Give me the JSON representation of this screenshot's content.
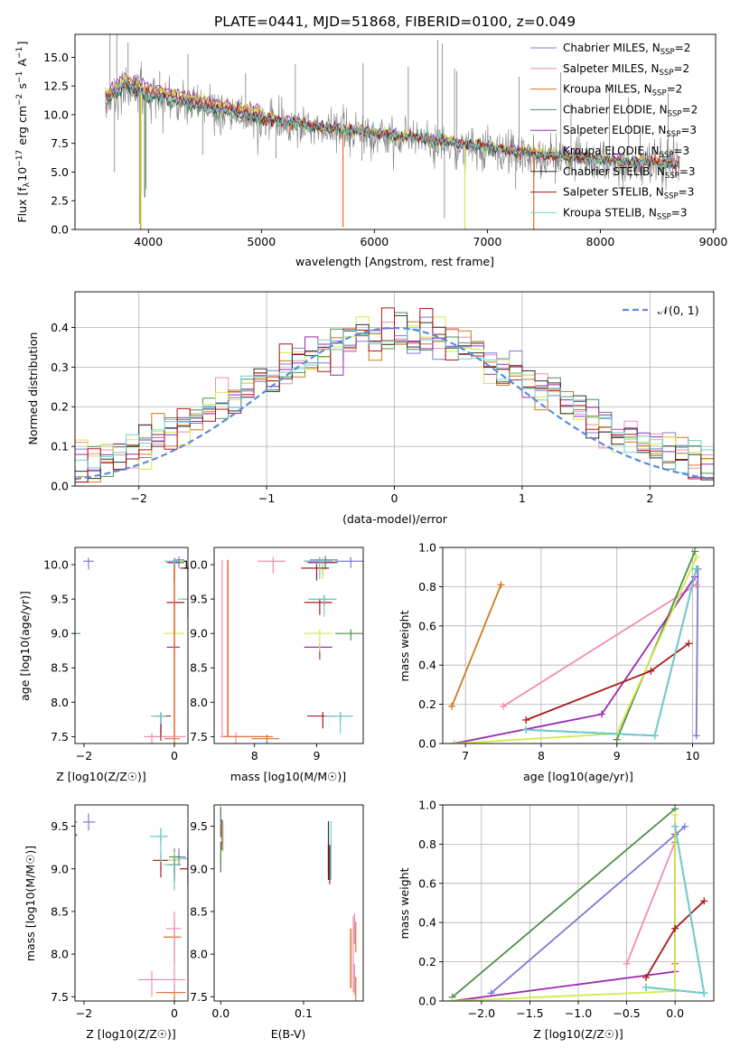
{
  "figure": {
    "title": "PLATE=0441, MJD=51868, FIBERID=0100, z=0.049"
  },
  "colors": {
    "Chabrier MILES": "#7b7bd6",
    "Salpeter MILES": "#f08cb4",
    "Kroupa MILES": "#d2781e",
    "Chabrier ELODIE": "#4f8f4f",
    "Salpeter ELODIE": "#9b2ab5",
    "Kroupa ELODIE": "#d4ea4a",
    "Chabrier STELIB": "#303030",
    "Salpeter STELIB": "#aa1a1a",
    "Kroupa STELIB": "#6dd3d3",
    "data": "#808080",
    "normal": "#5b8bd8",
    "orange_model": "#e8703a"
  },
  "chart_data": [
    {
      "id": "spectrum",
      "type": "line",
      "xlabel": "wavelength [Angstrom, rest frame]",
      "ylabel": "Flux [f_λ 10^-17 erg cm^-2 s^-1 A^-1]",
      "xlim": [
        3350,
        9020
      ],
      "ylim": [
        0,
        17
      ],
      "xticks": [
        4000,
        5000,
        6000,
        7000,
        8000,
        9000
      ],
      "yticks": [
        0.0,
        2.5,
        5.0,
        7.5,
        10.0,
        12.5,
        15.0
      ],
      "legend_position": "top-right",
      "legend": [
        {
          "model": "Chabrier MILES",
          "imf": "Chabrier MILES, N",
          "n": "=2"
        },
        {
          "model": "Salpeter MILES",
          "imf": "Salpeter MILES, N",
          "n": "=2"
        },
        {
          "model": "Kroupa MILES",
          "imf": "Kroupa MILES, N",
          "n": "=2"
        },
        {
          "model": "Chabrier ELODIE",
          "imf": "Chabrier ELODIE, N",
          "n": "=2"
        },
        {
          "model": "Salpeter ELODIE",
          "imf": "Salpeter ELODIE, N",
          "n": "=3"
        },
        {
          "model": "Kroupa ELODIE",
          "imf": "Kroupa ELODIE, N",
          "n": "=3"
        },
        {
          "model": "Chabrier STELIB",
          "imf": "Chabrier STELIB, N",
          "n": "=3"
        },
        {
          "model": "Salpeter STELIB",
          "imf": "Salpeter STELIB, N",
          "n": "=3"
        },
        {
          "model": "Kroupa STELIB",
          "imf": "Kroupa STELIB, N",
          "n": "=3"
        }
      ],
      "continuum": [
        [
          3620,
          11.0
        ],
        [
          3800,
          12.5
        ],
        [
          4000,
          11.6
        ],
        [
          4300,
          11.0
        ],
        [
          4600,
          10.3
        ],
        [
          5000,
          9.5
        ],
        [
          5500,
          8.7
        ],
        [
          6000,
          8.2
        ],
        [
          6500,
          7.6
        ],
        [
          7000,
          7.0
        ],
        [
          7500,
          6.3
        ],
        [
          8000,
          5.9
        ],
        [
          8500,
          5.6
        ],
        [
          8700,
          5.5
        ]
      ],
      "spikes": [
        [
          3660,
          17
        ],
        [
          3720,
          17
        ],
        [
          3820,
          16.3
        ],
        [
          3900,
          13
        ],
        [
          4100,
          13.8
        ],
        [
          4350,
          15.3
        ],
        [
          4860,
          13.6
        ],
        [
          5300,
          14.4
        ],
        [
          5900,
          14.5
        ],
        [
          6300,
          14.2
        ],
        [
          6560,
          16.5
        ],
        [
          6600,
          16.2
        ],
        [
          6710,
          14.0
        ],
        [
          6730,
          13.8
        ],
        [
          7280,
          13.3
        ],
        [
          7650,
          13.7
        ],
        [
          7740,
          11.0
        ],
        [
          8080,
          12.8
        ],
        [
          8250,
          11.5
        ],
        [
          8600,
          11.9
        ]
      ],
      "dips": [
        [
          3700,
          5.0
        ],
        [
          3920,
          0.5
        ],
        [
          3980,
          3.5
        ],
        [
          4480,
          6.5
        ],
        [
          5130,
          6.2
        ],
        [
          5890,
          6.0
        ],
        [
          6620,
          1.0
        ],
        [
          7250,
          3.5
        ],
        [
          7600,
          4.0
        ],
        [
          8200,
          3.0
        ]
      ]
    },
    {
      "id": "residuals",
      "type": "histogram",
      "xlabel": "(data-model)/error",
      "ylabel": "Normed distribution",
      "xlim": [
        -2.5,
        2.5
      ],
      "ylim": [
        0,
        0.49
      ],
      "xticks": [
        -2,
        -1,
        0,
        1,
        2
      ],
      "yticks": [
        0.0,
        0.1,
        0.2,
        0.3,
        0.4
      ],
      "legend_label": "N(0,1)",
      "legend_position": "top-right",
      "grid": true
    },
    {
      "id": "age_vs_Z",
      "type": "errorbar",
      "xlabel": "Z [log10(Z/Z☉)]",
      "ylabel": "age [log10(age/yr)]",
      "xlim": [
        -2.2,
        0.3
      ],
      "ylim": [
        7.4,
        10.25
      ],
      "xticks": [
        -2,
        0
      ],
      "yticks": [
        7.5,
        8.0,
        8.5,
        9.0,
        9.5,
        10.0
      ]
    },
    {
      "id": "age_vs_mass",
      "type": "errorbar",
      "xlabel": "mass [log10(M/M☉)]",
      "xlim": [
        7.35,
        9.75
      ],
      "ylim": [
        7.4,
        10.25
      ],
      "xticks": [
        8,
        9
      ],
      "yticks": [
        7.5,
        8.0,
        8.5,
        9.0,
        9.5,
        10.0
      ]
    },
    {
      "id": "weight_vs_age",
      "type": "line",
      "xlabel": "age [log10(age/yr)]",
      "ylabel": "mass weight",
      "xlim": [
        6.7,
        10.28
      ],
      "ylim": [
        0,
        1
      ],
      "xticks": [
        7,
        8,
        9,
        10
      ],
      "yticks": [
        0.0,
        0.2,
        0.4,
        0.6,
        0.8,
        1.0
      ],
      "grid": true
    },
    {
      "id": "mass_vs_Z",
      "type": "errorbar",
      "xlabel": "Z [log10(Z/Z☉)]",
      "ylabel": "mass [log10(M/M☉)]",
      "xlim": [
        -2.2,
        0.3
      ],
      "ylim": [
        7.45,
        9.75
      ],
      "xticks": [
        -2,
        0
      ],
      "yticks": [
        7.5,
        8.0,
        8.5,
        9.0,
        9.5
      ]
    },
    {
      "id": "mass_vs_ebv",
      "type": "errorbar",
      "xlabel": "E(B-V)",
      "xlim": [
        -0.008,
        0.172
      ],
      "ylim": [
        7.45,
        9.75
      ],
      "xticks": [
        0.0,
        0.1
      ],
      "yticks": [
        7.5,
        8.0,
        8.5,
        9.0,
        9.5
      ]
    },
    {
      "id": "weight_vs_Z",
      "type": "line",
      "xlabel": "Z [log10(Z/Z☉)]",
      "ylabel": "mass weight",
      "xlim": [
        -2.4,
        0.4
      ],
      "ylim": [
        0,
        1
      ],
      "xticks": [
        -2.0,
        -1.5,
        -1.0,
        -0.5,
        0.0
      ],
      "yticks": [
        0.0,
        0.2,
        0.4,
        0.6,
        0.8,
        1.0
      ],
      "grid": true
    }
  ],
  "models": [
    {
      "name": "Chabrier MILES",
      "age": [
        10.05,
        10.07
      ],
      "Z": [
        -1.9,
        0.1
      ],
      "mass": [
        9.55,
        9.14
      ],
      "ebv": [
        0.0,
        0.0
      ],
      "w": [
        0.04,
        0.89
      ]
    },
    {
      "name": "Salpeter MILES",
      "age": [
        7.5,
        10.05
      ],
      "Z": [
        -0.5,
        0.0
      ],
      "mass": [
        7.7,
        8.3
      ],
      "ebv": [
        0.16,
        0.16
      ],
      "w": [
        0.19,
        0.81
      ]
    },
    {
      "name": "Kroupa MILES",
      "age": [
        6.82,
        7.47
      ],
      "Z": [
        0.0,
        0.0
      ],
      "mass": [
        7.55,
        8.2
      ],
      "ebv": [
        0.16,
        0.16
      ],
      "w": [
        0.19,
        0.81
      ]
    },
    {
      "name": "Chabrier ELODIE",
      "age": [
        9.0,
        10.03
      ],
      "Z": [
        -2.3,
        0.0
      ],
      "mass": [
        9.55,
        9.14
      ],
      "ebv": [
        0.0,
        0.0
      ],
      "w": [
        0.02,
        0.98
      ]
    },
    {
      "name": "Salpeter ELODIE",
      "age": [
        6.85,
        8.8,
        10.03
      ],
      "Z": [
        -2.3,
        0.0,
        0.0
      ],
      "mass": [
        9.4,
        9.05,
        9.1
      ],
      "ebv": [
        0.0,
        0.13,
        0.13
      ],
      "w": [
        0.0,
        0.15,
        0.85
      ]
    },
    {
      "name": "Kroupa ELODIE",
      "age": [
        6.85,
        9.0,
        10.05
      ],
      "Z": [
        -2.3,
        0.0,
        0.0
      ],
      "mass": [
        9.38,
        9.05,
        9.1
      ],
      "ebv": [
        0.0,
        0.13,
        0.13
      ],
      "w": [
        0.0,
        0.05,
        0.95
      ]
    },
    {
      "name": "Chabrier STELIB",
      "age": [
        7.8,
        9.5,
        10.05
      ],
      "Z": [
        -0.3,
        0.3,
        0.0
      ],
      "mass": [
        9.38,
        9.12,
        9.05
      ],
      "ebv": [
        0.13,
        0.13,
        0.13
      ],
      "w": [
        0.07,
        0.04,
        0.89
      ]
    },
    {
      "name": "Salpeter STELIB",
      "age": [
        7.8,
        9.45,
        9.95
      ],
      "Z": [
        -0.3,
        0.0,
        0.3
      ],
      "mass": [
        9.1,
        9.05,
        9.0
      ],
      "ebv": [
        0.13,
        0.13,
        0.13
      ],
      "w": [
        0.12,
        0.37,
        0.51
      ]
    },
    {
      "name": "Kroupa STELIB",
      "age": [
        7.8,
        9.5,
        10.05
      ],
      "Z": [
        -0.3,
        0.3,
        0.0
      ],
      "mass": [
        9.38,
        9.12,
        9.05
      ],
      "ebv": [
        0.13,
        0.13,
        0.13
      ],
      "w": [
        0.07,
        0.04,
        0.89
      ]
    }
  ]
}
